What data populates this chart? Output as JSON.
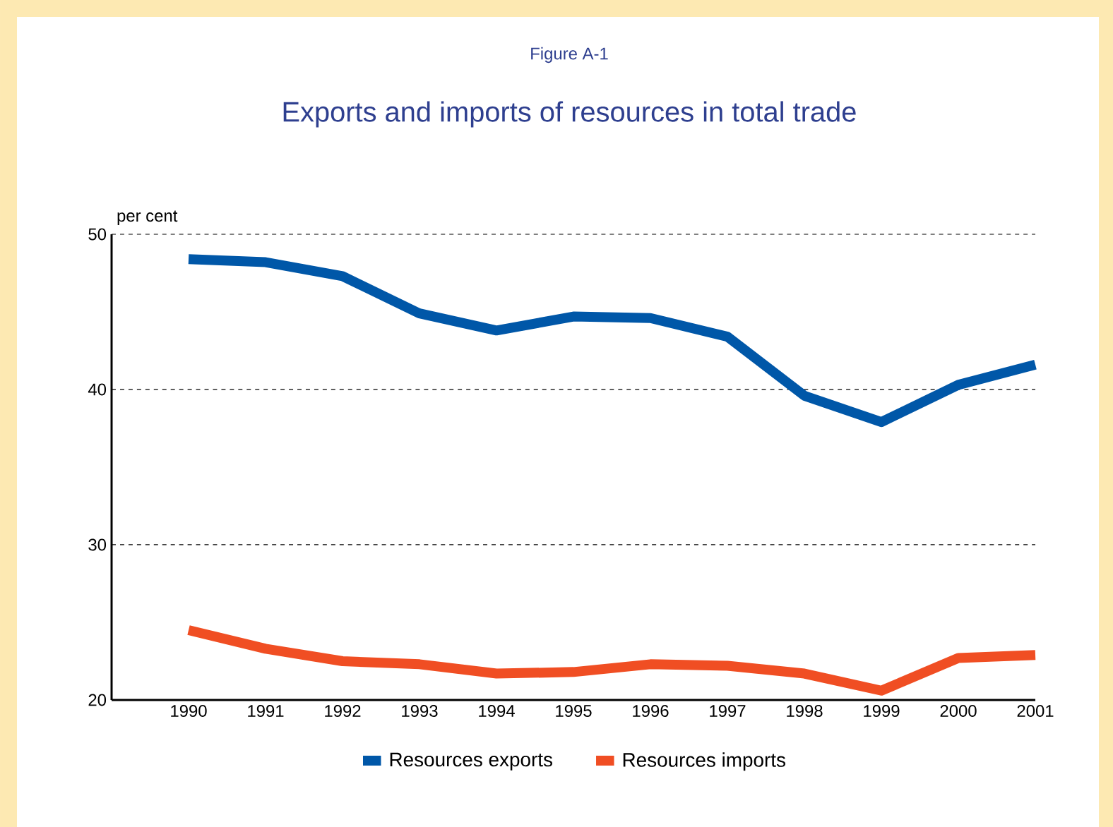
{
  "chart_data": {
    "type": "line",
    "subtitle": "Figure A-1",
    "title": "Exports and imports of resources in total trade",
    "ylabel": "per cent",
    "categories": [
      "1990",
      "1991",
      "1992",
      "1993",
      "1994",
      "1995",
      "1996",
      "1997",
      "1998",
      "1999",
      "2000",
      "2001"
    ],
    "series": [
      {
        "name": "Resources exports",
        "color": "#0057a8",
        "values": [
          48.4,
          48.2,
          47.3,
          44.9,
          43.8,
          44.7,
          44.6,
          43.4,
          39.6,
          37.9,
          40.3,
          41.6
        ]
      },
      {
        "name": "Resources imports",
        "color": "#f04e23",
        "values": [
          24.5,
          23.3,
          22.5,
          22.3,
          21.7,
          21.8,
          22.3,
          22.2,
          21.7,
          20.6,
          22.7,
          22.9
        ]
      }
    ],
    "ylim": [
      20,
      50
    ],
    "yticks": [
      20,
      30,
      40,
      50
    ],
    "grid": "y",
    "legend": "bottom",
    "line_style": "solid",
    "marker": "none"
  }
}
